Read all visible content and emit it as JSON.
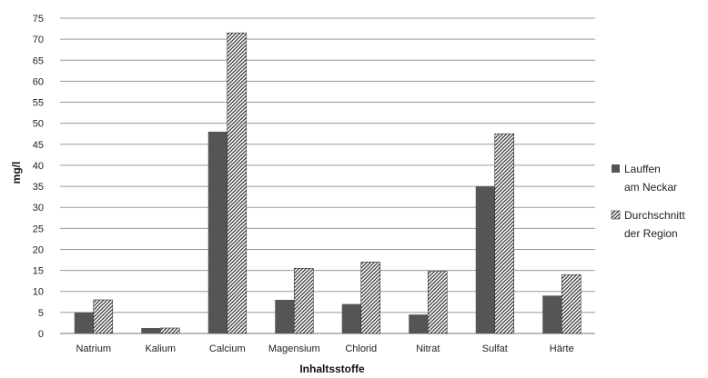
{
  "chart_data": {
    "type": "bar",
    "xlabel": "Inhaltsstoffe",
    "ylabel": "mg/l",
    "ylim": [
      0,
      75
    ],
    "yticks": [
      0,
      5,
      10,
      15,
      20,
      25,
      30,
      35,
      40,
      45,
      50,
      55,
      60,
      65,
      70,
      75
    ],
    "grid": true,
    "legend_position": "right",
    "categories": [
      "Natrium",
      "Kalium",
      "Calcium",
      "Magensium",
      "Chlorid",
      "Nitrat",
      "Sulfat",
      "Härte"
    ],
    "series": [
      {
        "name_lines": [
          "Lauffen",
          "am Neckar"
        ],
        "pattern": "solid",
        "color": "#555555",
        "values": [
          5,
          1.3,
          48,
          8,
          7,
          4.5,
          35,
          9
        ]
      },
      {
        "name_lines": [
          "Durchschnitt",
          "der Region"
        ],
        "pattern": "diagonal-hatch",
        "color": "#333333",
        "values": [
          8,
          1.3,
          71.5,
          15.5,
          17,
          14.8,
          47.5,
          14
        ]
      }
    ]
  }
}
